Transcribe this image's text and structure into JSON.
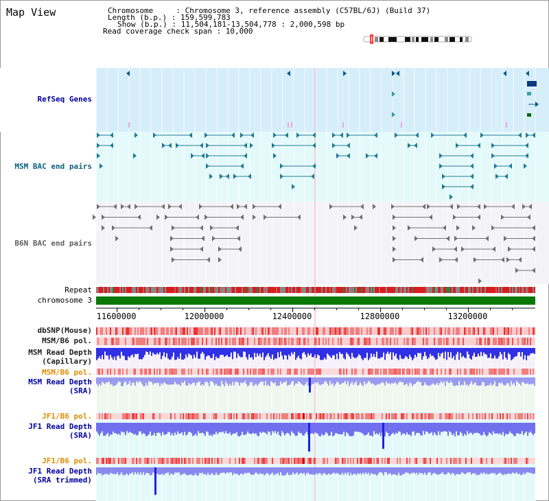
{
  "app": {
    "title": "Map View"
  },
  "header": {
    "chromosome": "Chromosome     : Chromosome 3, reference assembly (C57BL/6J) (Build 37)",
    "length": "Length (b.p.) : 159,599,783",
    "show": "Show (b.p.) : 11,504,181-13,504,778 : 2,000,598 bp",
    "coverage": "Read coverage check span : 10,000"
  },
  "labels": {
    "refseq": "RefSeq Genes",
    "msm_bac": "MSM BAC end pairs",
    "b6n_bac": "B6N BAC end pairs",
    "repeat": "Repeat",
    "chromosome": "chromosome 3",
    "dbsnp": "dbSNP(Mouse)",
    "msm_b6_pol": "MSM/B6 pol.",
    "msm_depth_cap": "MSM Read Depth\n(Capillary)",
    "msm_b6_pol2": "MSM/B6 pol.",
    "msm_depth_sra": "MSM Read Depth\n(SRA)",
    "jf1_b6_pol": "JF1/B6 pol.",
    "jf1_depth_sra": "JF1 Read Depth\n(SRA)",
    "jf1_b6_pol2": "JF1/B6 pol.",
    "jf1_depth_trim": "JF1 Read Depth\n(SRA trimmed)"
  },
  "chart_data": {
    "type": "genome-track",
    "chromosome": "chromosome 3",
    "x_range_bp": [
      11504181,
      13504778
    ],
    "x_ticks": [
      11600000,
      12000000,
      12400000,
      12800000,
      13200000
    ],
    "x_tick_labels": [
      "11600000",
      "12000000",
      "12400000",
      "12800000",
      "13200000"
    ],
    "tracks": [
      "RefSeq Genes",
      "MSM BAC end pairs",
      "B6N BAC end pairs",
      "Repeat",
      "chromosome 3",
      "dbSNP(Mouse)",
      "MSM/B6 pol.",
      "MSM Read Depth (Capillary)",
      "MSM/B6 pol.",
      "MSM Read Depth (SRA)",
      "JF1/B6 pol.",
      "JF1 Read Depth (SRA)",
      "JF1/B6 pol.",
      "JF1 Read Depth (SRA trimmed)"
    ],
    "colors": {
      "refseq_bg": "#d6eefa",
      "msm_bac_bg": "#e4fafa",
      "b6n_bg": "#f4f4f8",
      "refseq_glyph": "#0a5a84",
      "msm_glyph": "#237a96",
      "b6n_glyph": "#707070",
      "chromosome": "#087808",
      "depth": "#4646f0",
      "label_blue": "#0000a0",
      "label_msm": "#0a6080",
      "label_orange": "#e08c00"
    }
  }
}
